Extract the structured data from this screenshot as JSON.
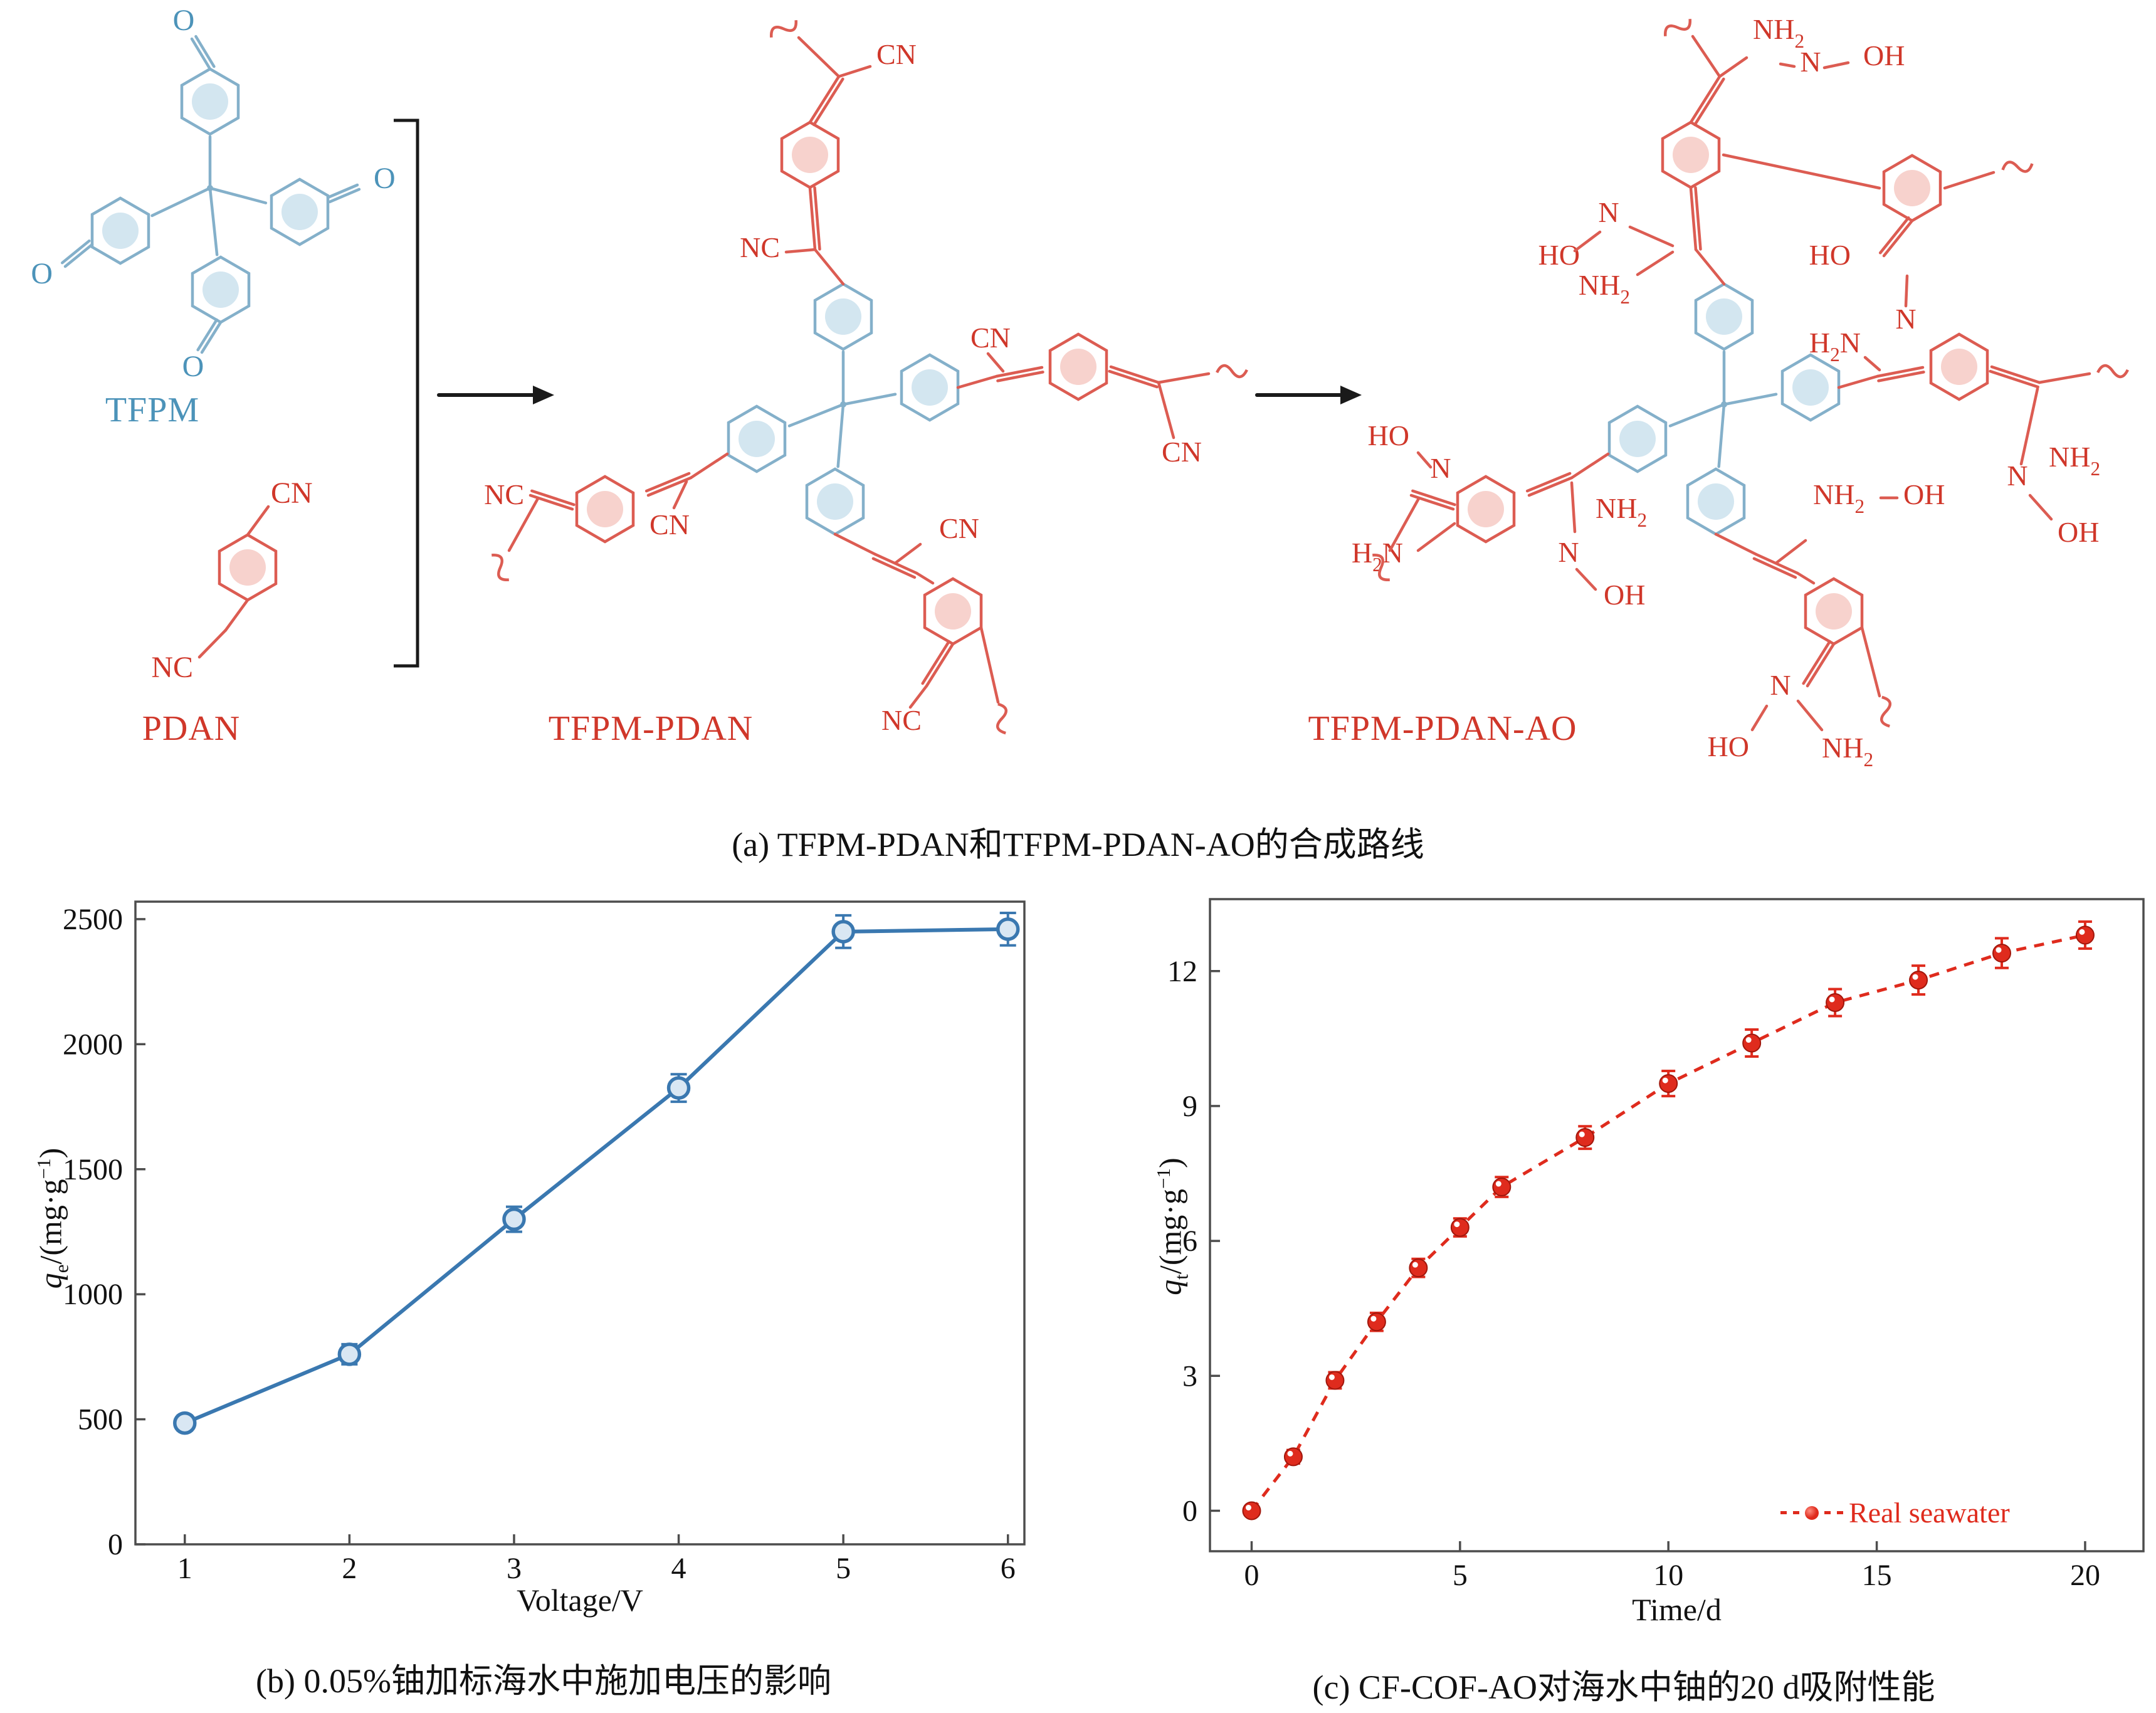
{
  "captions": {
    "a": "(a) TFPM-PDAN和TFPM-PDAN-AO的合成路线",
    "b": "(b) 0.05%铀加标海水中施加电压的影响",
    "c": "(c) CF-COF-AO对海水中铀的20 d吸附性能"
  },
  "scheme": {
    "molecules": [
      {
        "name": "TFPM",
        "color": "#84b0ca",
        "label_color": "#4c93b9",
        "atom_labels": [
          "O",
          "O",
          "O",
          "O"
        ]
      },
      {
        "name": "PDAN",
        "color": "#dc5c52",
        "label_color": "#d0372a",
        "atom_labels": [
          "CN",
          "NC"
        ]
      },
      {
        "name": "TFPM-PDAN",
        "color": "#dc5c52",
        "label_color": "#d0372a",
        "atom_labels": [
          "CN",
          "NC",
          "NC",
          "CN",
          "CN",
          "CN",
          "CN",
          "NC"
        ]
      },
      {
        "name": "TFPM-PDAN-AO",
        "color": "#dc5c52",
        "label_color": "#d0372a",
        "atom_labels": [
          "NH2",
          "N",
          "OH",
          "HO",
          "N",
          "NH2",
          "HO",
          "N",
          "H2N",
          "NH2",
          "N",
          "OH",
          "HO",
          "N",
          "H2N",
          "NH2",
          "N",
          "OH",
          "NH2",
          "OH",
          "N",
          "HO",
          "NH2"
        ]
      }
    ]
  },
  "chart_data": [
    {
      "type": "line",
      "panel": "b",
      "title": "",
      "xlabel": "Voltage/V",
      "ylabel": "qe/(mg·g−1)",
      "ylabel_parts": {
        "sym": "q",
        "sub": "e",
        "mid": "/(mg·g",
        "sup": "−1",
        "end": ")"
      },
      "x": [
        1,
        2,
        3,
        4,
        5,
        6
      ],
      "y": [
        485,
        760,
        1300,
        1825,
        2450,
        2460
      ],
      "yerr": [
        30,
        40,
        50,
        55,
        65,
        65
      ],
      "xlim": [
        0.7,
        6.1
      ],
      "ylim": [
        0,
        2570
      ],
      "xticks": [
        1,
        2,
        3,
        4,
        5,
        6
      ],
      "yticks": [
        0,
        500,
        1000,
        1500,
        2000,
        2500
      ],
      "color": "#3a78b0",
      "marker": "circle-open",
      "line_style": "solid",
      "grid": false,
      "legend": null
    },
    {
      "type": "scatter-line",
      "panel": "c",
      "title": "",
      "xlabel": "Time/d",
      "ylabel": "qt/(mg·g−1)",
      "ylabel_parts": {
        "sym": "q",
        "sub": "t",
        "mid": "/(mg·g",
        "sup": "−1",
        "end": ")"
      },
      "x": [
        0,
        1,
        2,
        3,
        4,
        5,
        6,
        8,
        10,
        12,
        14,
        16,
        18,
        20
      ],
      "y": [
        0,
        1.2,
        2.9,
        4.2,
        5.4,
        6.3,
        7.2,
        8.3,
        9.5,
        10.4,
        11.3,
        11.8,
        12.4,
        12.8
      ],
      "yerr": [
        0.05,
        0.15,
        0.18,
        0.2,
        0.2,
        0.2,
        0.22,
        0.25,
        0.28,
        0.3,
        0.3,
        0.32,
        0.33,
        0.3
      ],
      "xlim": [
        -1,
        21.4
      ],
      "ylim": [
        -0.9,
        13.6
      ],
      "xticks": [
        0,
        5,
        10,
        15,
        20
      ],
      "yticks": [
        0,
        3,
        6,
        9,
        12
      ],
      "color": "#df2b1d",
      "marker": "circle-filled",
      "line_style": "dashed",
      "grid": false,
      "legend": "Real seawater",
      "legend_position": "lower right"
    }
  ]
}
